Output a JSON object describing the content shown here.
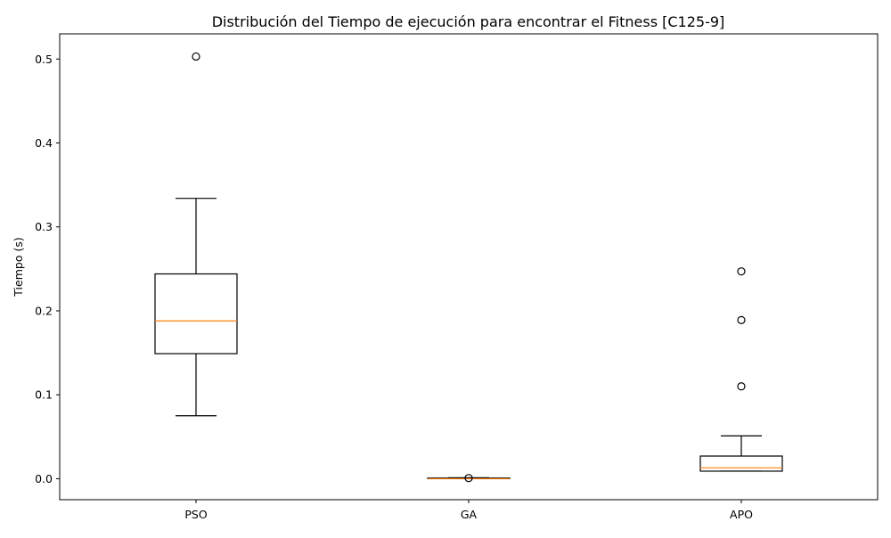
{
  "chart_data": {
    "type": "box",
    "title": "Distribución del Tiempo de ejecución para encontrar el Fitness [C125-9]",
    "xlabel": "",
    "ylabel": "Tiempo (s)",
    "ylim": [
      -0.025,
      0.53
    ],
    "yticks": [
      0.0,
      0.1,
      0.2,
      0.3,
      0.4,
      0.5
    ],
    "ytick_labels": [
      "0.0",
      "0.1",
      "0.2",
      "0.3",
      "0.4",
      "0.5"
    ],
    "grid": false,
    "categories": [
      "PSO",
      "GA",
      "APO"
    ],
    "boxes": [
      {
        "label": "PSO",
        "whisker_low": 0.075,
        "q1": 0.149,
        "median": 0.188,
        "q3": 0.244,
        "whisker_high": 0.334,
        "outliers": [
          0.503
        ]
      },
      {
        "label": "GA",
        "whisker_low": 0.0,
        "q1": 0.0,
        "median": 0.0,
        "q3": 0.0008,
        "whisker_high": 0.0012,
        "outliers": [
          0.0008
        ]
      },
      {
        "label": "APO",
        "whisker_low": 0.009,
        "q1": 0.009,
        "median": 0.013,
        "q3": 0.027,
        "whisker_high": 0.051,
        "outliers": [
          0.11,
          0.189,
          0.247
        ]
      }
    ],
    "colors": {
      "box": "#000000",
      "median": "#ff7f0e",
      "outlier": "#000000"
    }
  }
}
